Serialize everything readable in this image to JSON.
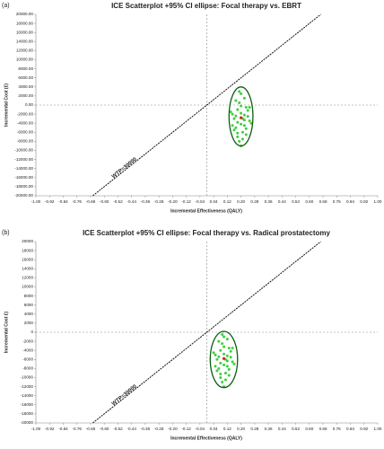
{
  "chart_data": [
    {
      "type": "scatter",
      "panel": "(a)",
      "title": "ICE Scatterplot +95% CI ellipse: Focal therapy vs. EBRT",
      "x_label": "Incremental Effectiveness (QALY)",
      "y_label": "Incremental Cost (£)",
      "color": "#3ccf3c",
      "mean_color": "#e0201c",
      "x": [
        0.2,
        0.18,
        0.22,
        0.16,
        0.24,
        0.19,
        0.21,
        0.17,
        0.23,
        0.15,
        0.25,
        0.2,
        0.18,
        0.22,
        0.14,
        0.26,
        0.19,
        0.21,
        0.17,
        0.23,
        0.2,
        0.16,
        0.24,
        0.18,
        0.22,
        0.2,
        0.19,
        0.21,
        0.15,
        0.25,
        0.2,
        0.18,
        0.22,
        0.17,
        0.23,
        0.2
      ],
      "values": [
        -2800,
        -1000,
        -4500,
        -3000,
        -2500,
        500,
        -6000,
        -5000,
        -500,
        -2000,
        -3500,
        2500,
        -7000,
        1500,
        -1500,
        -4000,
        -8000,
        -3000,
        1000,
        -6500,
        -4200,
        -5500,
        -1200,
        -3800,
        -2200,
        -9000,
        3000,
        -7500,
        -4500,
        -500,
        -1800,
        -6200,
        -3300,
        -2400,
        -5200,
        -200
      ],
      "mean": {
        "x": 0.2,
        "y": -2800
      },
      "ellipse": {
        "cx": 0.2,
        "cy": -2500,
        "rx": 0.07,
        "ry": 6500
      },
      "wtp_line": {
        "x": [
          -0.667,
          0.667
        ],
        "y": [
          -20000,
          20000
        ]
      },
      "wtp_label": "WTP=30000",
      "ref_x": 0,
      "ref_y": 0,
      "xlim": [
        -1,
        1
      ],
      "ylim": [
        -20000,
        20000
      ],
      "xticks": [
        {
          "value": -1,
          "label": "-1.00"
        },
        {
          "value": -0.92,
          "label": "-0.92"
        },
        {
          "value": -0.84,
          "label": "-0.84"
        },
        {
          "value": -0.76,
          "label": "-0.76"
        },
        {
          "value": -0.68,
          "label": "-0.68"
        },
        {
          "value": -0.6,
          "label": "-0.60"
        },
        {
          "value": -0.52,
          "label": "-0.52"
        },
        {
          "value": -0.44,
          "label": "-0.44"
        },
        {
          "value": -0.36,
          "label": "-0.36"
        },
        {
          "value": -0.28,
          "label": "-0.28"
        },
        {
          "value": -0.2,
          "label": "-0.20"
        },
        {
          "value": -0.12,
          "label": "-0.12"
        },
        {
          "value": -0.04,
          "label": "-0.04"
        },
        {
          "value": 0.04,
          "label": "0.04"
        },
        {
          "value": 0.12,
          "label": "0.12"
        },
        {
          "value": 0.2,
          "label": "0.20"
        },
        {
          "value": 0.28,
          "label": "0.28"
        },
        {
          "value": 0.36,
          "label": "0.36"
        },
        {
          "value": 0.44,
          "label": "0.44"
        },
        {
          "value": 0.52,
          "label": "0.52"
        },
        {
          "value": 0.6,
          "label": "0.60"
        },
        {
          "value": 0.68,
          "label": "0.68"
        },
        {
          "value": 0.76,
          "label": "0.76"
        },
        {
          "value": 0.84,
          "label": "0.84"
        },
        {
          "value": 0.92,
          "label": "0.92"
        },
        {
          "value": 1,
          "label": "1.00"
        }
      ],
      "yticks": [
        {
          "value": -20000,
          "label": "-20000.00"
        },
        {
          "value": -18000,
          "label": "-18000.00"
        },
        {
          "value": -16000,
          "label": "-16000.00"
        },
        {
          "value": -14000,
          "label": "-14000.00"
        },
        {
          "value": -12000,
          "label": "-12000.00"
        },
        {
          "value": -10000,
          "label": "-10000.00"
        },
        {
          "value": -8000,
          "label": "-8000.00"
        },
        {
          "value": -6000,
          "label": "-6000.00"
        },
        {
          "value": -4000,
          "label": "-4000.00"
        },
        {
          "value": -2000,
          "label": "-2000.00"
        },
        {
          "value": 0,
          "label": "0.00"
        },
        {
          "value": 2000,
          "label": "2000.00"
        },
        {
          "value": 4000,
          "label": "4000.00"
        },
        {
          "value": 6000,
          "label": "6000.00"
        },
        {
          "value": 8000,
          "label": "8000.00"
        },
        {
          "value": 10000,
          "label": "10000.00"
        },
        {
          "value": 12000,
          "label": "12000.00"
        },
        {
          "value": 14000,
          "label": "14000.00"
        },
        {
          "value": 16000,
          "label": "16000.00"
        },
        {
          "value": 18000,
          "label": "18000.00"
        },
        {
          "value": 20000,
          "label": "20000.00"
        }
      ]
    },
    {
      "type": "scatter",
      "panel": "(b)",
      "title": "ICE Scatterplot +95% CI ellipse: Focal therapy vs. Radical prostatectomy",
      "x_label": "Incremental Effectiveness (QALY)",
      "y_label": "Incremental Cost £)",
      "color": "#3ccf3c",
      "mean_color": "#e0201c",
      "x": [
        0.1,
        0.08,
        0.12,
        0.06,
        0.14,
        0.09,
        0.11,
        0.07,
        0.13,
        0.05,
        0.15,
        0.1,
        0.08,
        0.12,
        0.04,
        0.16,
        0.09,
        0.11,
        0.07,
        0.13,
        0.1,
        0.06,
        0.14,
        0.08,
        0.12,
        0.1,
        0.09,
        0.11,
        0.05,
        0.15,
        0.1,
        0.08,
        0.12,
        0.07,
        0.13,
        0.1
      ],
      "values": [
        -5800,
        -4000,
        -7500,
        -6000,
        -5500,
        -2500,
        -9000,
        -8000,
        -3500,
        -5000,
        -6500,
        -1000,
        -10000,
        -1500,
        -4500,
        -7000,
        -11000,
        -6000,
        -2000,
        -9500,
        -7200,
        -8500,
        -4200,
        -6800,
        -5200,
        -12000,
        -500,
        -10500,
        -7500,
        -3500,
        -4800,
        -9200,
        -6300,
        -5400,
        -8200,
        -3200
      ],
      "mean": {
        "x": 0.1,
        "y": -5800
      },
      "ellipse": {
        "cx": 0.1,
        "cy": -6000,
        "rx": 0.08,
        "ry": 6200
      },
      "wtp_line": {
        "x": [
          -0.667,
          0.667
        ],
        "y": [
          -20000,
          20000
        ]
      },
      "wtp_label": "WTP=30000",
      "ref_x": 0,
      "ref_y": 0,
      "xlim": [
        -1,
        1
      ],
      "ylim": [
        -20000,
        20000
      ],
      "xticks": [
        {
          "value": -1,
          "label": "-1.00"
        },
        {
          "value": -0.92,
          "label": "-0.92"
        },
        {
          "value": -0.84,
          "label": "-0.84"
        },
        {
          "value": -0.76,
          "label": "-0.76"
        },
        {
          "value": -0.68,
          "label": "-0.68"
        },
        {
          "value": -0.6,
          "label": "-0.60"
        },
        {
          "value": -0.52,
          "label": "-0.52"
        },
        {
          "value": -0.44,
          "label": "-0.44"
        },
        {
          "value": -0.36,
          "label": "-0.36"
        },
        {
          "value": -0.28,
          "label": "-0.28"
        },
        {
          "value": -0.2,
          "label": "-0.20"
        },
        {
          "value": -0.12,
          "label": "-0.12"
        },
        {
          "value": -0.04,
          "label": "-0.04"
        },
        {
          "value": 0.04,
          "label": "0.04"
        },
        {
          "value": 0.12,
          "label": "0.12"
        },
        {
          "value": 0.2,
          "label": "0.20"
        },
        {
          "value": 0.28,
          "label": "0.28"
        },
        {
          "value": 0.36,
          "label": "0.36"
        },
        {
          "value": 0.44,
          "label": "0.44"
        },
        {
          "value": 0.52,
          "label": "0.52"
        },
        {
          "value": 0.6,
          "label": "0.60"
        },
        {
          "value": 0.68,
          "label": "0.68"
        },
        {
          "value": 0.76,
          "label": "0.76"
        },
        {
          "value": 0.84,
          "label": "0.84"
        },
        {
          "value": 0.92,
          "label": "0.92"
        },
        {
          "value": 1,
          "label": "1.00"
        }
      ],
      "yticks": [
        -20000,
        -18000,
        -16000,
        -14000,
        -12000,
        -10000,
        -8000,
        -6000,
        -4000,
        -2000,
        0,
        2000,
        4000,
        6000,
        8000,
        10000,
        12000,
        14000,
        16000,
        18000,
        20000
      ]
    }
  ]
}
